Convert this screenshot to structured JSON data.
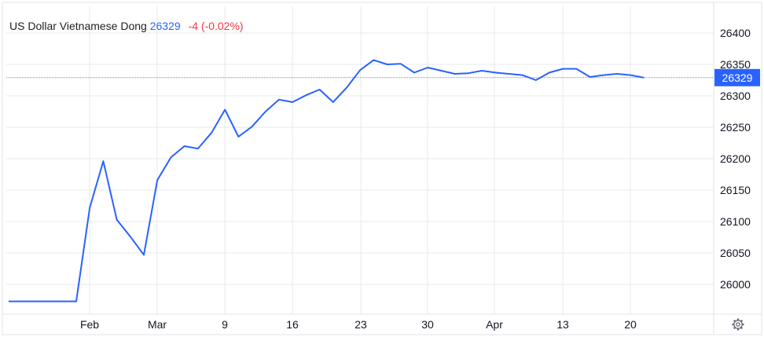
{
  "legend": {
    "symbol_name": "US Dollar Vietnamese Dong",
    "last_price": "26329",
    "change": "-4 (-0.02%)"
  },
  "colors": {
    "line": "#2962ff",
    "price_label_bg": "#2962ff",
    "change_negative": "#f23645",
    "grid": "#e6e9ee"
  },
  "settings_icon": "gear-icon",
  "chart_data": {
    "type": "line",
    "title": "US Dollar Vietnamese Dong",
    "ylim": [
      25950,
      26450
    ],
    "y_ticks": [
      26000,
      26050,
      26100,
      26150,
      26200,
      26250,
      26300,
      26350,
      26400
    ],
    "x_ticks": [
      "Feb",
      "Mar",
      "9",
      "16",
      "23",
      "30",
      "Apr",
      "13",
      "20"
    ],
    "grid": true,
    "last_value_label": "26329",
    "points": [
      {
        "x": "Jan",
        "y": 25973
      },
      {
        "x": "Jan 30",
        "y": 25973
      },
      {
        "x": "Feb 2",
        "y": 26122
      },
      {
        "x": "Feb",
        "y": 26196
      },
      {
        "x": "Feb",
        "y": 26103
      },
      {
        "x": "Feb",
        "y": 26076
      },
      {
        "x": "Feb",
        "y": 26047
      },
      {
        "x": "Mar 2",
        "y": 26166
      },
      {
        "x": "Mar 3",
        "y": 26202
      },
      {
        "x": "Mar 4",
        "y": 26220
      },
      {
        "x": "Mar 5",
        "y": 26216
      },
      {
        "x": "Mar 6",
        "y": 26241
      },
      {
        "x": "Mar 9",
        "y": 26278
      },
      {
        "x": "Mar 10",
        "y": 26235
      },
      {
        "x": "Mar 11",
        "y": 26251
      },
      {
        "x": "Mar 12",
        "y": 26275
      },
      {
        "x": "Mar 13",
        "y": 26294
      },
      {
        "x": "Mar 16",
        "y": 26290
      },
      {
        "x": "Mar 17",
        "y": 26301
      },
      {
        "x": "Mar 18",
        "y": 26310
      },
      {
        "x": "Mar 19",
        "y": 26290
      },
      {
        "x": "Mar 20",
        "y": 26313
      },
      {
        "x": "Mar 23",
        "y": 26341
      },
      {
        "x": "Mar 24",
        "y": 26357
      },
      {
        "x": "Mar 25",
        "y": 26350
      },
      {
        "x": "Mar 26",
        "y": 26351
      },
      {
        "x": "Mar 27",
        "y": 26337
      },
      {
        "x": "Mar 30",
        "y": 26345
      },
      {
        "x": "Mar 31",
        "y": 26340
      },
      {
        "x": "Apr 1",
        "y": 26335
      },
      {
        "x": "Apr 2",
        "y": 26336
      },
      {
        "x": "Apr 3",
        "y": 26340
      },
      {
        "x": "Apr 6",
        "y": 26337
      },
      {
        "x": "Apr 7",
        "y": 26335
      },
      {
        "x": "Apr 8",
        "y": 26333
      },
      {
        "x": "Apr 9",
        "y": 26325
      },
      {
        "x": "Apr 10",
        "y": 26337
      },
      {
        "x": "Apr 13",
        "y": 26343
      },
      {
        "x": "Apr 14",
        "y": 26343
      },
      {
        "x": "Apr 15",
        "y": 26330
      },
      {
        "x": "Apr 16",
        "y": 26333
      },
      {
        "x": "Apr 17",
        "y": 26335
      },
      {
        "x": "Apr 20",
        "y": 26333
      },
      {
        "x": "Apr 21",
        "y": 26329
      }
    ]
  }
}
